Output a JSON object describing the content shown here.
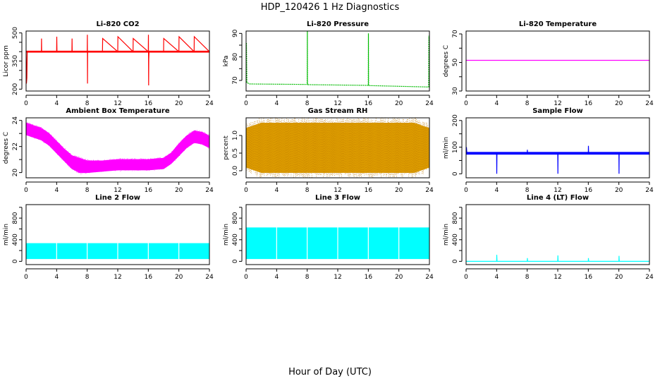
{
  "figure": {
    "title": "HDP_120426  1 Hz Diagnostics",
    "xlabel": "Hour of Day (UTC)"
  },
  "chart_data": [
    {
      "type": "line",
      "title": "Li-820 CO2",
      "ylabel": "Licor ppm",
      "xlim": [
        0,
        24
      ],
      "ylim": [
        190,
        510
      ],
      "xticks": [
        "0",
        "4",
        "8",
        "12",
        "16",
        "20",
        "24"
      ],
      "yticks": [
        200,
        250,
        300,
        350,
        400,
        450,
        500
      ],
      "ytick_labels": [
        "200",
        "",
        "",
        "350",
        "",
        "",
        "500"
      ],
      "color": "#ff0000",
      "series": [
        {
          "x": [
            0,
            0.05,
            0.1,
            0.15,
            0.2,
            2,
            2.02,
            2.04,
            2.1,
            4,
            4.02,
            4.04,
            6,
            6.02,
            6.04,
            8,
            8.02,
            8.04,
            8.06,
            8.1,
            10,
            10.02,
            12,
            12.02,
            14,
            14.02,
            16,
            16.02,
            16.04,
            16.06,
            16.1,
            18,
            18.02,
            20,
            20.02,
            22,
            22.02,
            24
          ],
          "y": [
            400,
            230,
            260,
            400,
            400,
            400,
            470,
            400,
            400,
            400,
            480,
            400,
            400,
            470,
            400,
            400,
            490,
            230,
            400,
            400,
            400,
            470,
            400,
            480,
            400,
            470,
            400,
            490,
            220,
            360,
            400,
            400,
            470,
            400,
            480,
            400,
            480,
            400
          ]
        }
      ],
      "band": {
        "low": 395,
        "high": 405
      }
    },
    {
      "type": "line",
      "title": "Li-820 Pressure",
      "ylabel": "kPa",
      "xlim": [
        0,
        24
      ],
      "ylim": [
        65.5,
        91
      ],
      "xticks": [
        "0",
        "4",
        "8",
        "12",
        "16",
        "20",
        "24"
      ],
      "yticks": [
        70,
        75,
        80,
        85,
        90
      ],
      "ytick_labels": [
        "70",
        "",
        "80",
        "",
        "90"
      ],
      "color": "#00bb00",
      "series": [
        {
          "x": [
            0,
            0.05,
            0.1,
            0.5,
            8,
            8.02,
            8.04,
            8.1,
            16,
            16.02,
            16.04,
            16.1,
            23.9,
            23.92,
            24
          ],
          "y": [
            69,
            86,
            69,
            68.5,
            68.3,
            91,
            68.3,
            68.2,
            67.9,
            90,
            67.9,
            67.8,
            67.2,
            89,
            67.2
          ]
        }
      ]
    },
    {
      "type": "line",
      "title": "Li-820 Temperature",
      "ylabel": "degrees C",
      "xlim": [
        0,
        24
      ],
      "ylim": [
        30,
        72
      ],
      "xticks": [
        "0",
        "4",
        "8",
        "12",
        "16",
        "20",
        "24"
      ],
      "yticks": [
        30,
        40,
        50,
        60,
        70
      ],
      "ytick_labels": [
        "30",
        "",
        "50",
        "",
        "70"
      ],
      "color": "#ff00ff",
      "series": [
        {
          "x": [
            0,
            24
          ],
          "y": [
            51.5,
            51.5
          ]
        }
      ]
    },
    {
      "type": "area",
      "title": "Ambient Box Temperature",
      "ylabel": "degrees C",
      "xlim": [
        0,
        24
      ],
      "ylim": [
        19.6,
        24.2
      ],
      "xticks": [
        "0",
        "4",
        "8",
        "12",
        "16",
        "20",
        "24"
      ],
      "yticks": [
        20,
        21,
        22,
        23,
        24
      ],
      "ytick_labels": [
        "20",
        "",
        "22",
        "",
        "24"
      ],
      "color": "#ff00ff",
      "upper": {
        "x": [
          0,
          1,
          2,
          3,
          4,
          5,
          6,
          7,
          8,
          10,
          12,
          14,
          16,
          18,
          19,
          20,
          21,
          22,
          23,
          24
        ],
        "y": [
          23.8,
          23.6,
          23.4,
          23.0,
          22.4,
          21.8,
          21.3,
          21.1,
          20.9,
          20.9,
          21.0,
          21.0,
          21.0,
          21.1,
          21.5,
          22.2,
          22.8,
          23.2,
          23.1,
          22.8
        ]
      },
      "lower": {
        "x": [
          0,
          1,
          2,
          3,
          4,
          5,
          6,
          7,
          8,
          10,
          12,
          14,
          16,
          18,
          19,
          20,
          21,
          22,
          23,
          24
        ],
        "y": [
          22.9,
          22.7,
          22.5,
          22.1,
          21.5,
          20.9,
          20.3,
          20.0,
          20.0,
          20.1,
          20.2,
          20.2,
          20.2,
          20.3,
          20.7,
          21.3,
          21.9,
          22.3,
          22.2,
          21.9
        ]
      }
    },
    {
      "type": "area",
      "title": "Gas Stream RH",
      "ylabel": "percent",
      "xlim": [
        0,
        24
      ],
      "ylim": [
        -0.2,
        1.5
      ],
      "xticks": [
        "0",
        "4",
        "8",
        "12",
        "16",
        "20",
        "24"
      ],
      "yticks": [
        0.0,
        0.5,
        1.0
      ],
      "ytick_labels": [
        "0.0",
        "0.5",
        "1.0"
      ],
      "color": "#e0a000",
      "dot_color": "#bb7700",
      "upper": {
        "x": [
          0,
          2,
          4,
          6,
          8,
          10,
          12,
          14,
          16,
          18,
          20,
          22,
          24
        ],
        "y": [
          1.2,
          1.35,
          1.35,
          1.35,
          1.35,
          1.35,
          1.35,
          1.35,
          1.35,
          1.35,
          1.35,
          1.35,
          1.2
        ]
      },
      "lower": {
        "x": [
          0,
          2,
          4,
          6,
          8,
          10,
          12,
          14,
          16,
          18,
          20,
          22,
          24
        ],
        "y": [
          0.1,
          -0.05,
          -0.05,
          -0.05,
          -0.05,
          -0.05,
          -0.05,
          -0.05,
          -0.05,
          -0.05,
          -0.05,
          -0.05,
          0.1
        ]
      }
    },
    {
      "type": "line",
      "title": "Sample Flow",
      "ylabel": "ml/min",
      "xlim": [
        0,
        24
      ],
      "ylim": [
        -15,
        210
      ],
      "xticks": [
        "0",
        "4",
        "8",
        "12",
        "16",
        "20",
        "24"
      ],
      "yticks": [
        0,
        50,
        100,
        150,
        200
      ],
      "ytick_labels": [
        "0",
        "",
        "100",
        "",
        "200"
      ],
      "color": "#0000ff",
      "band": {
        "low": 72,
        "high": 82
      },
      "series": [
        {
          "x": [
            0,
            0.05,
            0.1,
            4,
            4.02,
            4.04,
            8,
            8.02,
            8.04,
            12,
            12.02,
            12.04,
            16,
            16.02,
            16.04,
            20,
            20.02,
            20.04,
            24,
            24.02
          ],
          "y": [
            77,
            100,
            77,
            77,
            0,
            77,
            77,
            90,
            77,
            77,
            0,
            77,
            77,
            105,
            77,
            77,
            0,
            77,
            77,
            0
          ]
        }
      ]
    },
    {
      "type": "area",
      "title": "Line 2 Flow",
      "ylabel": "ml/min",
      "xlim": [
        0,
        24
      ],
      "ylim": [
        -60,
        1050
      ],
      "xticks": [
        "0",
        "4",
        "8",
        "12",
        "16",
        "20",
        "24"
      ],
      "yticks": [
        0,
        200,
        400,
        600,
        800,
        1000
      ],
      "ytick_labels": [
        "0",
        "",
        "400",
        "",
        "800",
        ""
      ],
      "color": "#00ffff",
      "upper": {
        "x": [
          0,
          24
        ],
        "y": [
          330,
          330
        ]
      },
      "lower": {
        "x": [
          0,
          24
        ],
        "y": [
          50,
          50
        ]
      },
      "gaps": [
        4,
        8,
        12,
        16,
        20
      ]
    },
    {
      "type": "area",
      "title": "Line 3 Flow",
      "ylabel": "ml/min",
      "xlim": [
        0,
        24
      ],
      "ylim": [
        -60,
        1050
      ],
      "xticks": [
        "0",
        "4",
        "8",
        "12",
        "16",
        "20",
        "24"
      ],
      "yticks": [
        0,
        200,
        400,
        600,
        800,
        1000
      ],
      "ytick_labels": [
        "0",
        "",
        "400",
        "",
        "800",
        ""
      ],
      "color": "#00ffff",
      "upper": {
        "x": [
          0,
          24
        ],
        "y": [
          620,
          620
        ]
      },
      "lower": {
        "x": [
          0,
          24
        ],
        "y": [
          50,
          50
        ]
      },
      "gaps": [
        4,
        8,
        12,
        16,
        20
      ]
    },
    {
      "type": "line",
      "title": "Line 4 (LT) Flow",
      "ylabel": "ml/min",
      "xlim": [
        0,
        24
      ],
      "ylim": [
        -60,
        1050
      ],
      "xticks": [
        "0",
        "4",
        "8",
        "12",
        "16",
        "20",
        "24"
      ],
      "yticks": [
        0,
        200,
        400,
        600,
        800,
        1000
      ],
      "ytick_labels": [
        "0",
        "",
        "400",
        "",
        "800",
        ""
      ],
      "color": "#00ffff",
      "series": [
        {
          "x": [
            0,
            4,
            4.02,
            4.05,
            8,
            8.02,
            8.05,
            12,
            12.02,
            12.05,
            16,
            16.02,
            16.05,
            20,
            20.02,
            20.05,
            24
          ],
          "y": [
            0,
            0,
            120,
            0,
            0,
            60,
            0,
            0,
            110,
            0,
            0,
            60,
            0,
            0,
            100,
            0,
            0
          ]
        }
      ]
    }
  ]
}
